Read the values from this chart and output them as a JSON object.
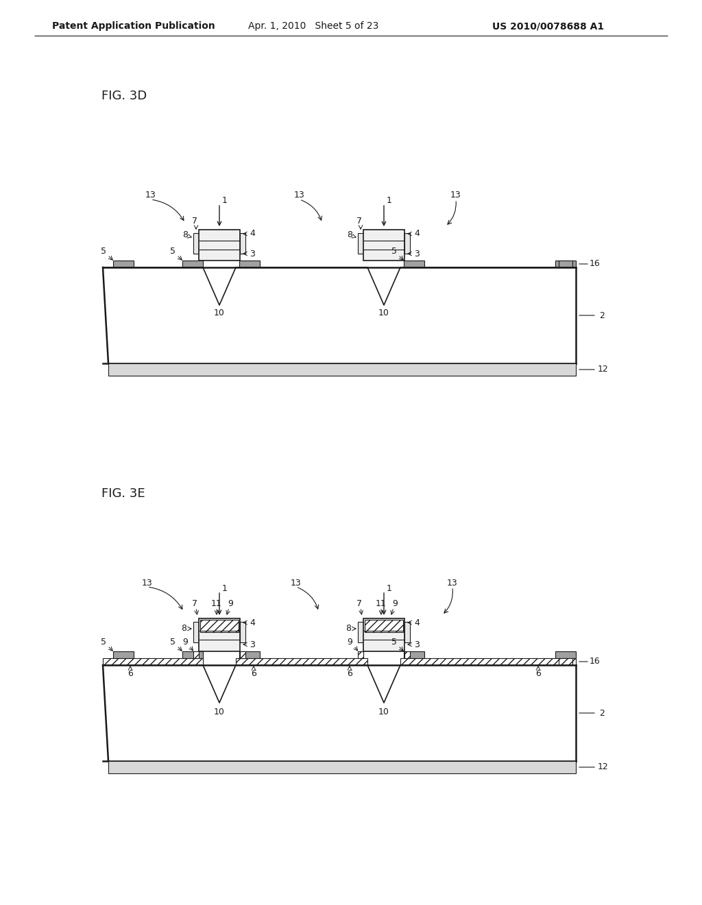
{
  "bg_color": "#ffffff",
  "line_color": "#1a1a1a",
  "header_left": "Patent Application Publication",
  "header_mid": "Apr. 1, 2010   Sheet 5 of 23",
  "header_right": "US 2010/0078688 A1",
  "fig3d_label": "FIG. 3D",
  "fig3e_label": "FIG. 3E",
  "lfs": 9,
  "fig_lfs": 13
}
